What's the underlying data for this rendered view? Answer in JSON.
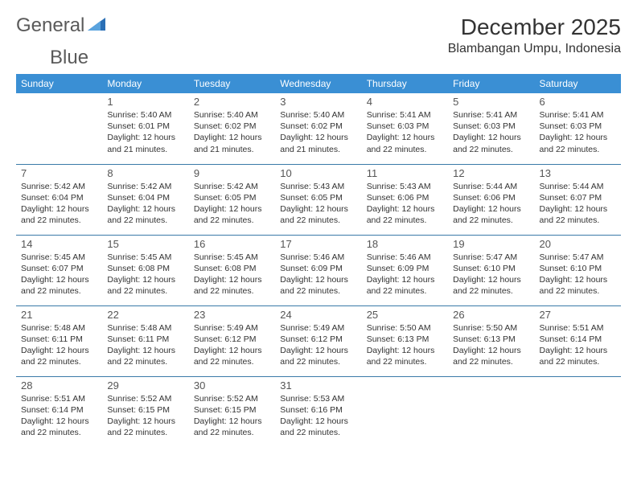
{
  "logo": {
    "text1": "General",
    "text2": "Blue",
    "icon_color": "#2a6fb5"
  },
  "header": {
    "month_title": "December 2025",
    "location": "Blambangan Umpu, Indonesia"
  },
  "colors": {
    "header_bg": "#3a8fd4",
    "header_text": "#ffffff",
    "cell_border": "#3a7aa8",
    "text": "#333333",
    "daynum": "#555555"
  },
  "weekdays": [
    "Sunday",
    "Monday",
    "Tuesday",
    "Wednesday",
    "Thursday",
    "Friday",
    "Saturday"
  ],
  "labels": {
    "sunrise": "Sunrise:",
    "sunset": "Sunset:",
    "daylight": "Daylight:"
  },
  "weeks": [
    [
      null,
      {
        "d": "1",
        "sr": "5:40 AM",
        "ss": "6:01 PM",
        "dl": "12 hours and 21 minutes."
      },
      {
        "d": "2",
        "sr": "5:40 AM",
        "ss": "6:02 PM",
        "dl": "12 hours and 21 minutes."
      },
      {
        "d": "3",
        "sr": "5:40 AM",
        "ss": "6:02 PM",
        "dl": "12 hours and 21 minutes."
      },
      {
        "d": "4",
        "sr": "5:41 AM",
        "ss": "6:03 PM",
        "dl": "12 hours and 22 minutes."
      },
      {
        "d": "5",
        "sr": "5:41 AM",
        "ss": "6:03 PM",
        "dl": "12 hours and 22 minutes."
      },
      {
        "d": "6",
        "sr": "5:41 AM",
        "ss": "6:03 PM",
        "dl": "12 hours and 22 minutes."
      }
    ],
    [
      {
        "d": "7",
        "sr": "5:42 AM",
        "ss": "6:04 PM",
        "dl": "12 hours and 22 minutes."
      },
      {
        "d": "8",
        "sr": "5:42 AM",
        "ss": "6:04 PM",
        "dl": "12 hours and 22 minutes."
      },
      {
        "d": "9",
        "sr": "5:42 AM",
        "ss": "6:05 PM",
        "dl": "12 hours and 22 minutes."
      },
      {
        "d": "10",
        "sr": "5:43 AM",
        "ss": "6:05 PM",
        "dl": "12 hours and 22 minutes."
      },
      {
        "d": "11",
        "sr": "5:43 AM",
        "ss": "6:06 PM",
        "dl": "12 hours and 22 minutes."
      },
      {
        "d": "12",
        "sr": "5:44 AM",
        "ss": "6:06 PM",
        "dl": "12 hours and 22 minutes."
      },
      {
        "d": "13",
        "sr": "5:44 AM",
        "ss": "6:07 PM",
        "dl": "12 hours and 22 minutes."
      }
    ],
    [
      {
        "d": "14",
        "sr": "5:45 AM",
        "ss": "6:07 PM",
        "dl": "12 hours and 22 minutes."
      },
      {
        "d": "15",
        "sr": "5:45 AM",
        "ss": "6:08 PM",
        "dl": "12 hours and 22 minutes."
      },
      {
        "d": "16",
        "sr": "5:45 AM",
        "ss": "6:08 PM",
        "dl": "12 hours and 22 minutes."
      },
      {
        "d": "17",
        "sr": "5:46 AM",
        "ss": "6:09 PM",
        "dl": "12 hours and 22 minutes."
      },
      {
        "d": "18",
        "sr": "5:46 AM",
        "ss": "6:09 PM",
        "dl": "12 hours and 22 minutes."
      },
      {
        "d": "19",
        "sr": "5:47 AM",
        "ss": "6:10 PM",
        "dl": "12 hours and 22 minutes."
      },
      {
        "d": "20",
        "sr": "5:47 AM",
        "ss": "6:10 PM",
        "dl": "12 hours and 22 minutes."
      }
    ],
    [
      {
        "d": "21",
        "sr": "5:48 AM",
        "ss": "6:11 PM",
        "dl": "12 hours and 22 minutes."
      },
      {
        "d": "22",
        "sr": "5:48 AM",
        "ss": "6:11 PM",
        "dl": "12 hours and 22 minutes."
      },
      {
        "d": "23",
        "sr": "5:49 AM",
        "ss": "6:12 PM",
        "dl": "12 hours and 22 minutes."
      },
      {
        "d": "24",
        "sr": "5:49 AM",
        "ss": "6:12 PM",
        "dl": "12 hours and 22 minutes."
      },
      {
        "d": "25",
        "sr": "5:50 AM",
        "ss": "6:13 PM",
        "dl": "12 hours and 22 minutes."
      },
      {
        "d": "26",
        "sr": "5:50 AM",
        "ss": "6:13 PM",
        "dl": "12 hours and 22 minutes."
      },
      {
        "d": "27",
        "sr": "5:51 AM",
        "ss": "6:14 PM",
        "dl": "12 hours and 22 minutes."
      }
    ],
    [
      {
        "d": "28",
        "sr": "5:51 AM",
        "ss": "6:14 PM",
        "dl": "12 hours and 22 minutes."
      },
      {
        "d": "29",
        "sr": "5:52 AM",
        "ss": "6:15 PM",
        "dl": "12 hours and 22 minutes."
      },
      {
        "d": "30",
        "sr": "5:52 AM",
        "ss": "6:15 PM",
        "dl": "12 hours and 22 minutes."
      },
      {
        "d": "31",
        "sr": "5:53 AM",
        "ss": "6:16 PM",
        "dl": "12 hours and 22 minutes."
      },
      null,
      null,
      null
    ]
  ]
}
